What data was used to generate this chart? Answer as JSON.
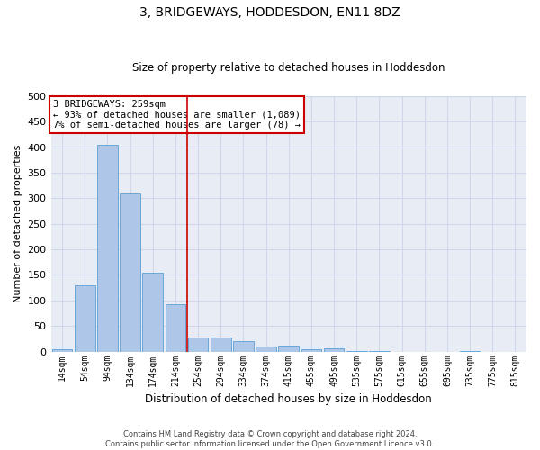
{
  "title": "3, BRIDGEWAYS, HODDESDON, EN11 8DZ",
  "subtitle": "Size of property relative to detached houses in Hoddesdon",
  "xlabel": "Distribution of detached houses by size in Hoddesdon",
  "ylabel": "Number of detached properties",
  "bar_labels": [
    "14sqm",
    "54sqm",
    "94sqm",
    "134sqm",
    "174sqm",
    "214sqm",
    "254sqm",
    "294sqm",
    "334sqm",
    "374sqm",
    "415sqm",
    "455sqm",
    "495sqm",
    "535sqm",
    "575sqm",
    "615sqm",
    "655sqm",
    "695sqm",
    "735sqm",
    "775sqm",
    "815sqm"
  ],
  "bar_values": [
    5,
    130,
    405,
    310,
    155,
    93,
    28,
    28,
    20,
    10,
    12,
    5,
    6,
    2,
    1,
    0,
    0,
    0,
    1,
    0,
    0
  ],
  "bar_color": "#aec6e8",
  "bar_edgecolor": "#5a9fd4",
  "annotation_text_line1": "3 BRIDGEWAYS: 259sqm",
  "annotation_text_line2": "← 93% of detached houses are smaller (1,089)",
  "annotation_text_line3": "7% of semi-detached houses are larger (78) →",
  "annotation_box_facecolor": "#ffffff",
  "annotation_box_edgecolor": "#cc0000",
  "vline_color": "#cc0000",
  "grid_color": "#ced8ea",
  "bg_color": "#e8edf5",
  "ylim": [
    0,
    500
  ],
  "yticks": [
    0,
    50,
    100,
    150,
    200,
    250,
    300,
    350,
    400,
    450,
    500
  ],
  "footer_line1": "Contains HM Land Registry data © Crown copyright and database right 2024.",
  "footer_line2": "Contains public sector information licensed under the Open Government Licence v3.0."
}
